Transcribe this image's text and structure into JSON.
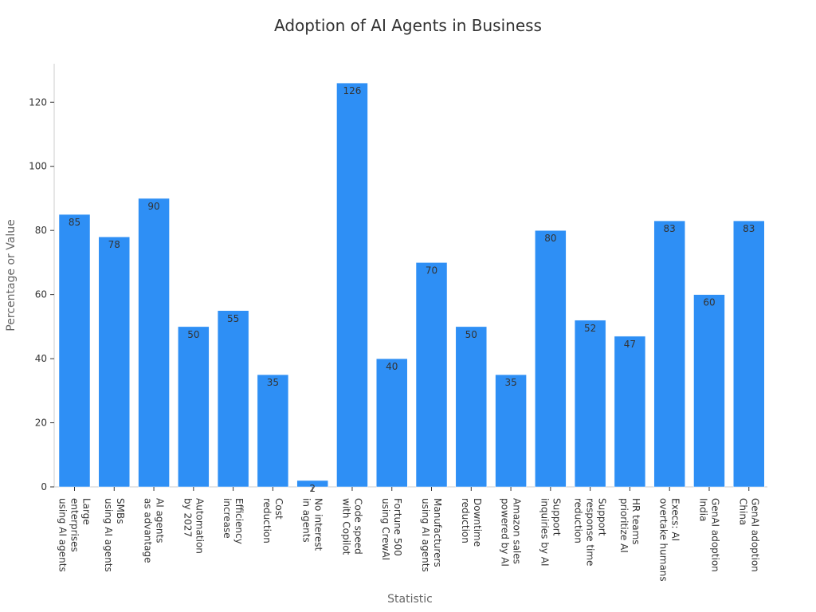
{
  "chart_data": {
    "type": "bar",
    "title": "Adoption of AI Agents in Business",
    "xlabel": "Statistic",
    "ylabel": "Percentage or Value",
    "ylim": [
      0,
      132
    ],
    "yticks": [
      0,
      20,
      40,
      60,
      80,
      100,
      120
    ],
    "grid": false,
    "bar_color": "#2e8ff5",
    "categories": [
      [
        "Large",
        "enterprises",
        "using AI agents"
      ],
      [
        "SMBs",
        "using AI agents"
      ],
      [
        "AI agents",
        "as advantage"
      ],
      [
        "Automation",
        "by 2027"
      ],
      [
        "Efficiency",
        "increase"
      ],
      [
        "Cost",
        "reduction"
      ],
      [
        "No interest",
        "in agents"
      ],
      [
        "Code speed",
        "with Copilot"
      ],
      [
        "Fortune 500",
        "using CrewAI"
      ],
      [
        "Manufacturers",
        "using AI agents"
      ],
      [
        "Downtime",
        "reduction"
      ],
      [
        "Amazon sales",
        "powered by AI"
      ],
      [
        "Support",
        "inquiries by AI"
      ],
      [
        "Support",
        "response time",
        "reduction"
      ],
      [
        "HR teams",
        "prioritize AI"
      ],
      [
        "Execs: AI",
        "overtake humans"
      ],
      [
        "GenAI adoption",
        "India"
      ],
      [
        "GenAI adoption",
        "China"
      ]
    ],
    "values": [
      85,
      78,
      90,
      50,
      55,
      35,
      2,
      126,
      40,
      70,
      50,
      35,
      80,
      52,
      47,
      83,
      60,
      83
    ]
  }
}
